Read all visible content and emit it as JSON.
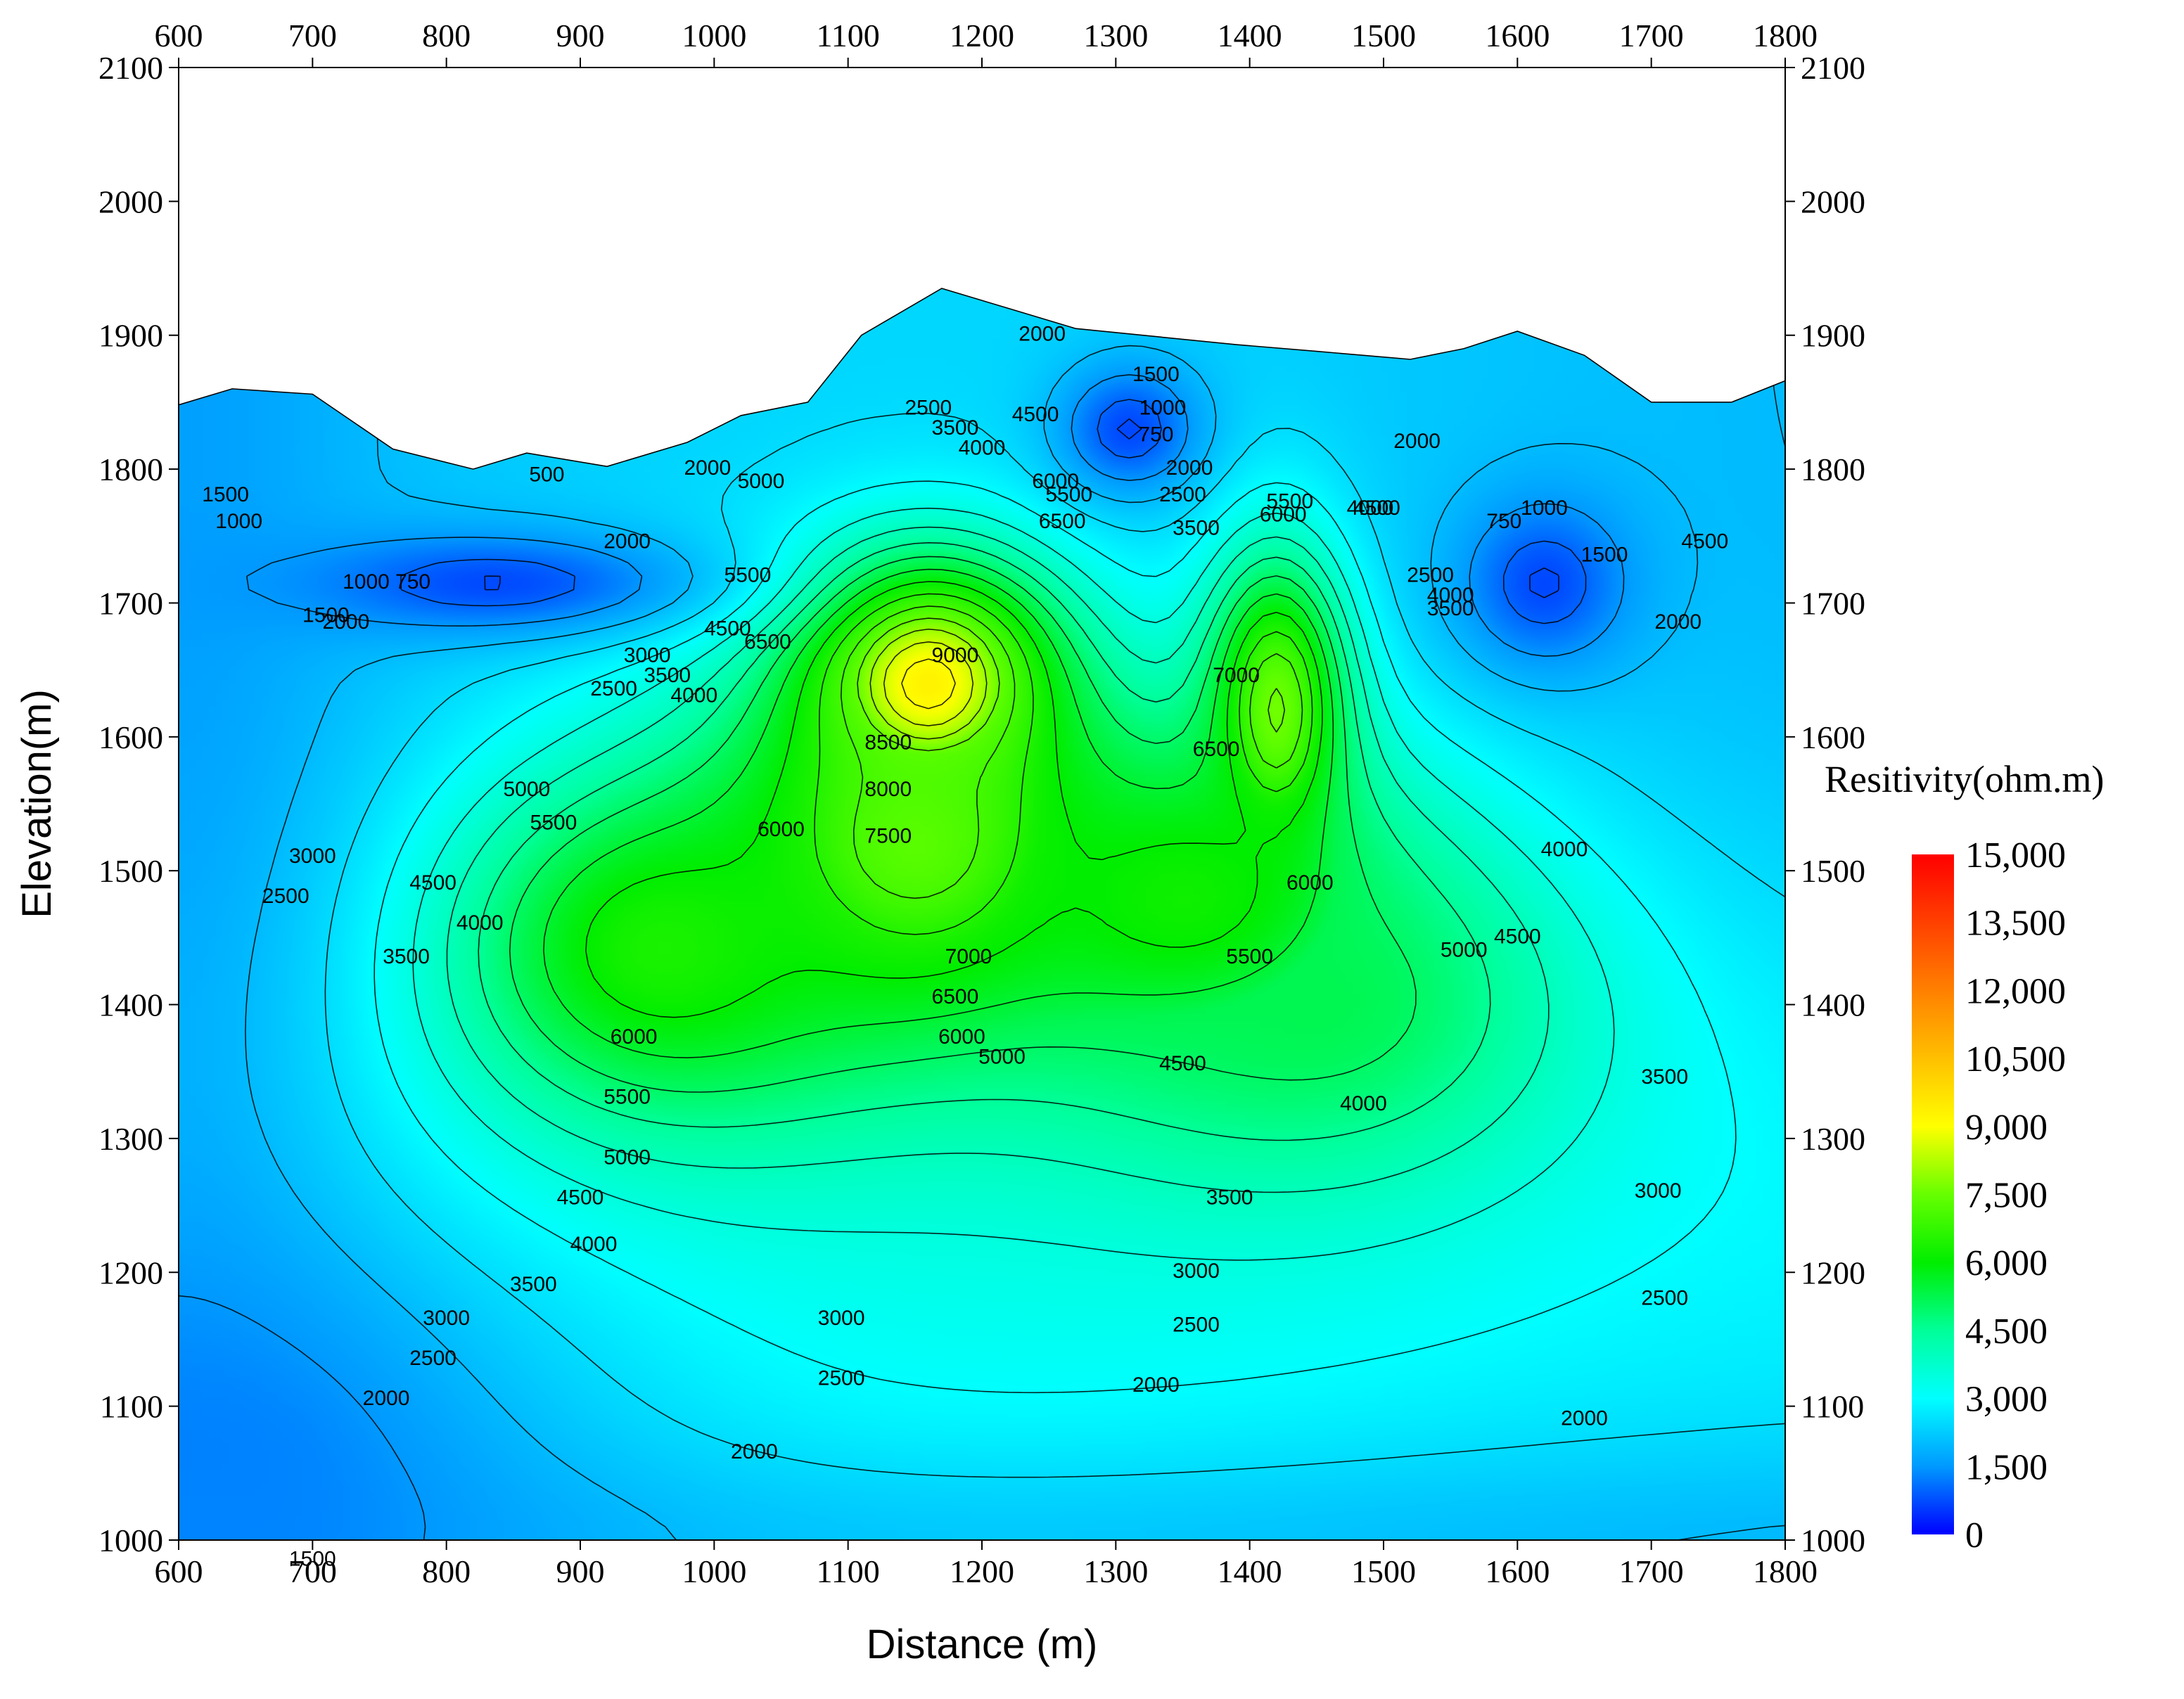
{
  "chart_data": {
    "type": "heatmap",
    "subtype": "filled-contour resistivity section",
    "xlabel": "Distance (m)",
    "ylabel": "Elevation(m)",
    "xlim": [
      600,
      1800
    ],
    "ylim": [
      1000,
      2100
    ],
    "x_ticks": [
      600,
      700,
      800,
      900,
      1000,
      1100,
      1200,
      1300,
      1400,
      1500,
      1600,
      1700,
      1800
    ],
    "y_ticks": [
      1000,
      1100,
      1200,
      1300,
      1400,
      1500,
      1600,
      1700,
      1800,
      1900,
      2000,
      2100
    ],
    "x_tick_labels": [
      "600",
      "700",
      "800",
      "900",
      "1000",
      "1100",
      "1200",
      "1300",
      "1400",
      "1500",
      "1600",
      "1700",
      "1800"
    ],
    "y_tick_labels": [
      "1000",
      "1100",
      "1200",
      "1300",
      "1400",
      "1500",
      "1600",
      "1700",
      "1800",
      "1900",
      "2000",
      "2100"
    ],
    "colorbar": {
      "title": "Resitivity(ohm.m)",
      "range": [
        0,
        15000
      ],
      "ticks": [
        0,
        1500,
        3000,
        4500,
        6000,
        7500,
        9000,
        10500,
        12000,
        13500,
        15000
      ],
      "tick_labels": [
        "0",
        "1,500",
        "3,000",
        "4,500",
        "6,000",
        "7,500",
        "9,000",
        "10,500",
        "12,000",
        "13,500",
        "15,000"
      ],
      "colors": [
        "#0000ff",
        "#0099ff",
        "#00ffff",
        "#00ff99",
        "#00ee00",
        "#66ff00",
        "#ffff00",
        "#ffc000",
        "#ff8000",
        "#ff4000",
        "#ff0000"
      ]
    },
    "surface_profile": [
      [
        600,
        1848
      ],
      [
        640,
        1860
      ],
      [
        700,
        1856
      ],
      [
        760,
        1815
      ],
      [
        820,
        1800
      ],
      [
        860,
        1812
      ],
      [
        920,
        1802
      ],
      [
        980,
        1820
      ],
      [
        1020,
        1840
      ],
      [
        1070,
        1850
      ],
      [
        1110,
        1900
      ],
      [
        1170,
        1935
      ],
      [
        1220,
        1920
      ],
      [
        1270,
        1905
      ],
      [
        1320,
        1900
      ],
      [
        1390,
        1893
      ],
      [
        1450,
        1888
      ],
      [
        1520,
        1882
      ],
      [
        1560,
        1890
      ],
      [
        1600,
        1903
      ],
      [
        1650,
        1885
      ],
      [
        1700,
        1850
      ],
      [
        1760,
        1850
      ],
      [
        1800,
        1866
      ]
    ],
    "anomalies": [
      {
        "x": 1160,
        "y": 1640,
        "value": 9300,
        "sx": 95,
        "sy": 90
      },
      {
        "x": 1150,
        "y": 1520,
        "value": 7300,
        "sx": 160,
        "sy": 150
      },
      {
        "x": 1420,
        "y": 1620,
        "value": 7600,
        "sx": 55,
        "sy": 120
      },
      {
        "x": 1350,
        "y": 1480,
        "value": 6200,
        "sx": 170,
        "sy": 130
      },
      {
        "x": 960,
        "y": 1440,
        "value": 6400,
        "sx": 170,
        "sy": 140
      },
      {
        "x": 1450,
        "y": 1400,
        "value": 5200,
        "sx": 200,
        "sy": 140
      }
    ],
    "low_zones": [
      {
        "x": 830,
        "y": 1715,
        "value": 700,
        "sx": 160,
        "sy": 40
      },
      {
        "x": 1310,
        "y": 1830,
        "value": 700,
        "sx": 55,
        "sy": 50
      },
      {
        "x": 1620,
        "y": 1715,
        "value": 700,
        "sx": 65,
        "sy": 65
      },
      {
        "x": 600,
        "y": 1050,
        "value": 1200,
        "sx": 300,
        "sy": 200
      }
    ],
    "contour_labels": [
      {
        "x": 925,
        "y": 1635,
        "text": "2500"
      },
      {
        "x": 950,
        "y": 1660,
        "text": "3000"
      },
      {
        "x": 965,
        "y": 1645,
        "text": "3500"
      },
      {
        "x": 985,
        "y": 1630,
        "text": "4000"
      },
      {
        "x": 1010,
        "y": 1680,
        "text": "4500"
      },
      {
        "x": 1025,
        "y": 1720,
        "text": "5500"
      },
      {
        "x": 1035,
        "y": 1790,
        "text": "5000"
      },
      {
        "x": 1040,
        "y": 1670,
        "text": "6500"
      },
      {
        "x": 860,
        "y": 1560,
        "text": "5000"
      },
      {
        "x": 880,
        "y": 1535,
        "text": "5500"
      },
      {
        "x": 790,
        "y": 1490,
        "text": "4500"
      },
      {
        "x": 825,
        "y": 1460,
        "text": "4000"
      },
      {
        "x": 770,
        "y": 1435,
        "text": "3500"
      },
      {
        "x": 700,
        "y": 1510,
        "text": "3000"
      },
      {
        "x": 680,
        "y": 1480,
        "text": "2500"
      },
      {
        "x": 1180,
        "y": 1660,
        "text": "9000"
      },
      {
        "x": 1130,
        "y": 1595,
        "text": "8500"
      },
      {
        "x": 1130,
        "y": 1560,
        "text": "8000"
      },
      {
        "x": 1130,
        "y": 1525,
        "text": "7500"
      },
      {
        "x": 1190,
        "y": 1435,
        "text": "7000"
      },
      {
        "x": 1180,
        "y": 1405,
        "text": "6500"
      },
      {
        "x": 1185,
        "y": 1375,
        "text": "6000"
      },
      {
        "x": 1050,
        "y": 1530,
        "text": "6000"
      },
      {
        "x": 940,
        "y": 1375,
        "text": "6000"
      },
      {
        "x": 935,
        "y": 1330,
        "text": "5500"
      },
      {
        "x": 935,
        "y": 1285,
        "text": "5000"
      },
      {
        "x": 900,
        "y": 1255,
        "text": "4500"
      },
      {
        "x": 910,
        "y": 1220,
        "text": "4000"
      },
      {
        "x": 865,
        "y": 1190,
        "text": "3500"
      },
      {
        "x": 800,
        "y": 1165,
        "text": "3000"
      },
      {
        "x": 790,
        "y": 1135,
        "text": "2500"
      },
      {
        "x": 755,
        "y": 1105,
        "text": "2000"
      },
      {
        "x": 700,
        "y": 985,
        "text": "1500"
      },
      {
        "x": 1095,
        "y": 1165,
        "text": "3000"
      },
      {
        "x": 1095,
        "y": 1120,
        "text": "2500"
      },
      {
        "x": 1030,
        "y": 1065,
        "text": "2000"
      },
      {
        "x": 1160,
        "y": 1845,
        "text": "2500"
      },
      {
        "x": 1180,
        "y": 1830,
        "text": "3500"
      },
      {
        "x": 1200,
        "y": 1815,
        "text": "4000"
      },
      {
        "x": 1240,
        "y": 1840,
        "text": "4500"
      },
      {
        "x": 1255,
        "y": 1790,
        "text": "6000"
      },
      {
        "x": 1260,
        "y": 1760,
        "text": "6500"
      },
      {
        "x": 1265,
        "y": 1780,
        "text": "5500"
      },
      {
        "x": 1245,
        "y": 1900,
        "text": "2000"
      },
      {
        "x": 1330,
        "y": 1870,
        "text": "1500"
      },
      {
        "x": 1335,
        "y": 1845,
        "text": "1000"
      },
      {
        "x": 1330,
        "y": 1825,
        "text": "750"
      },
      {
        "x": 1355,
        "y": 1800,
        "text": "2000"
      },
      {
        "x": 1350,
        "y": 1780,
        "text": "2500"
      },
      {
        "x": 1360,
        "y": 1755,
        "text": "3500"
      },
      {
        "x": 1430,
        "y": 1775,
        "text": "5500"
      },
      {
        "x": 1425,
        "y": 1765,
        "text": "6000"
      },
      {
        "x": 1390,
        "y": 1645,
        "text": "7000"
      },
      {
        "x": 1375,
        "y": 1590,
        "text": "6500"
      },
      {
        "x": 1445,
        "y": 1490,
        "text": "6000"
      },
      {
        "x": 1400,
        "y": 1435,
        "text": "5500"
      },
      {
        "x": 1350,
        "y": 1355,
        "text": "4500"
      },
      {
        "x": 1215,
        "y": 1360,
        "text": "5000"
      },
      {
        "x": 1485,
        "y": 1325,
        "text": "4000"
      },
      {
        "x": 1385,
        "y": 1255,
        "text": "3500"
      },
      {
        "x": 1360,
        "y": 1200,
        "text": "3000"
      },
      {
        "x": 1360,
        "y": 1160,
        "text": "2500"
      },
      {
        "x": 1330,
        "y": 1115,
        "text": "2000"
      },
      {
        "x": 1490,
        "y": 1770,
        "text": "4000"
      },
      {
        "x": 1495,
        "y": 1770,
        "text": "4500"
      },
      {
        "x": 1525,
        "y": 1820,
        "text": "2000"
      },
      {
        "x": 1535,
        "y": 1720,
        "text": "2500"
      },
      {
        "x": 1550,
        "y": 1695,
        "text": "3500"
      },
      {
        "x": 1550,
        "y": 1705,
        "text": "4000"
      },
      {
        "x": 1560,
        "y": 1440,
        "text": "5000"
      },
      {
        "x": 1600,
        "y": 1450,
        "text": "4500"
      },
      {
        "x": 1635,
        "y": 1515,
        "text": "4000"
      },
      {
        "x": 1590,
        "y": 1760,
        "text": "750"
      },
      {
        "x": 1620,
        "y": 1770,
        "text": "1000"
      },
      {
        "x": 1665,
        "y": 1735,
        "text": "1500"
      },
      {
        "x": 1720,
        "y": 1685,
        "text": "2000"
      },
      {
        "x": 1710,
        "y": 1345,
        "text": "3500"
      },
      {
        "x": 1705,
        "y": 1260,
        "text": "3000"
      },
      {
        "x": 1710,
        "y": 1180,
        "text": "2500"
      },
      {
        "x": 1650,
        "y": 1090,
        "text": "2000"
      },
      {
        "x": 1740,
        "y": 1745,
        "text": "4500"
      },
      {
        "x": 635,
        "y": 1780,
        "text": "1500"
      },
      {
        "x": 645,
        "y": 1760,
        "text": "1000"
      },
      {
        "x": 740,
        "y": 1715,
        "text": "1000"
      },
      {
        "x": 775,
        "y": 1715,
        "text": "750"
      },
      {
        "x": 710,
        "y": 1690,
        "text": "1500"
      },
      {
        "x": 725,
        "y": 1685,
        "text": "2000"
      },
      {
        "x": 935,
        "y": 1745,
        "text": "2000"
      },
      {
        "x": 995,
        "y": 1800,
        "text": "2000"
      },
      {
        "x": 875,
        "y": 1795,
        "text": "500"
      }
    ]
  }
}
